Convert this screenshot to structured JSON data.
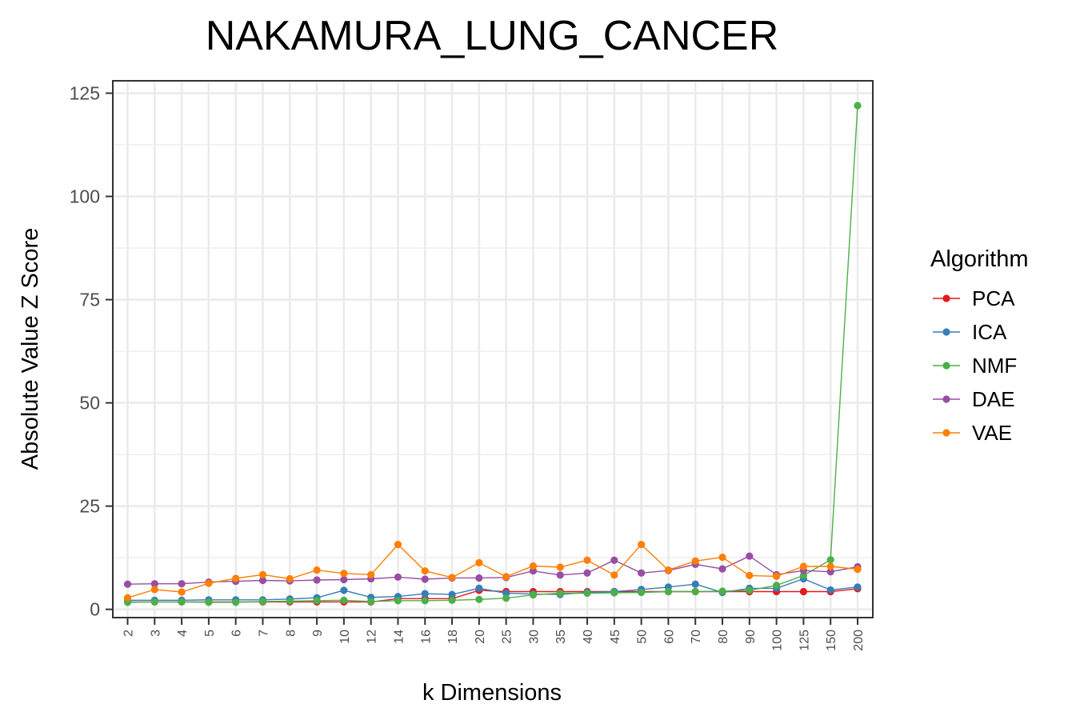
{
  "chart_data": {
    "type": "line",
    "title": "NAKAMURA_LUNG_CANCER",
    "xlabel": "k Dimensions",
    "ylabel": "Absolute Value Z Score",
    "ylim": [
      -2,
      128
    ],
    "yticks": [
      0,
      25,
      50,
      75,
      100,
      125
    ],
    "grid": true,
    "legend_position": "right",
    "legend_title": "Algorithm",
    "categories": [
      "2",
      "3",
      "4",
      "5",
      "6",
      "7",
      "8",
      "9",
      "10",
      "12",
      "14",
      "16",
      "18",
      "20",
      "25",
      "30",
      "35",
      "40",
      "45",
      "50",
      "60",
      "70",
      "80",
      "90",
      "100",
      "125",
      "150",
      "200"
    ],
    "series": [
      {
        "name": "PCA",
        "color": "#E41A1C",
        "values": [
          1.8,
          1.8,
          1.8,
          1.8,
          1.8,
          1.8,
          1.8,
          1.8,
          1.8,
          1.8,
          2.6,
          2.6,
          2.6,
          4.6,
          4.3,
          4.3,
          4.3,
          4.3,
          4.3,
          4.3,
          4.3,
          4.3,
          4.3,
          4.3,
          4.3,
          4.3,
          4.3,
          5.0
        ]
      },
      {
        "name": "ICA",
        "color": "#377EB8",
        "values": [
          2.2,
          2.2,
          2.2,
          2.3,
          2.3,
          2.3,
          2.5,
          2.8,
          4.6,
          2.9,
          3.1,
          3.8,
          3.6,
          5.1,
          3.9,
          3.7,
          3.6,
          4.1,
          4.3,
          4.8,
          5.4,
          6.1,
          4.1,
          5.1,
          5.1,
          7.4,
          4.7,
          5.4
        ]
      },
      {
        "name": "NMF",
        "color": "#4DAF4A",
        "values": [
          1.7,
          1.8,
          1.8,
          1.7,
          1.7,
          1.9,
          2.0,
          2.1,
          2.2,
          1.9,
          2.1,
          2.1,
          2.2,
          2.4,
          2.7,
          3.5,
          3.9,
          3.9,
          4.0,
          4.1,
          4.3,
          4.3,
          4.4,
          4.6,
          5.8,
          8.2,
          12.0,
          122.0
        ]
      },
      {
        "name": "DAE",
        "color": "#984EA3",
        "values": [
          6.1,
          6.2,
          6.2,
          6.6,
          6.8,
          7.0,
          6.9,
          7.1,
          7.2,
          7.4,
          7.8,
          7.3,
          7.6,
          7.6,
          7.7,
          9.3,
          8.3,
          8.8,
          11.9,
          8.8,
          9.4,
          10.9,
          9.8,
          12.9,
          8.4,
          9.4,
          9.1,
          10.3
        ]
      },
      {
        "name": "VAE",
        "color": "#FF7F00",
        "values": [
          2.8,
          4.8,
          4.2,
          6.3,
          7.5,
          8.4,
          7.4,
          9.5,
          8.7,
          8.4,
          15.7,
          9.3,
          7.7,
          11.3,
          7.9,
          10.5,
          10.2,
          11.9,
          8.3,
          15.7,
          9.5,
          11.7,
          12.6,
          8.2,
          8.0,
          10.4,
          10.4,
          9.7
        ]
      }
    ]
  }
}
